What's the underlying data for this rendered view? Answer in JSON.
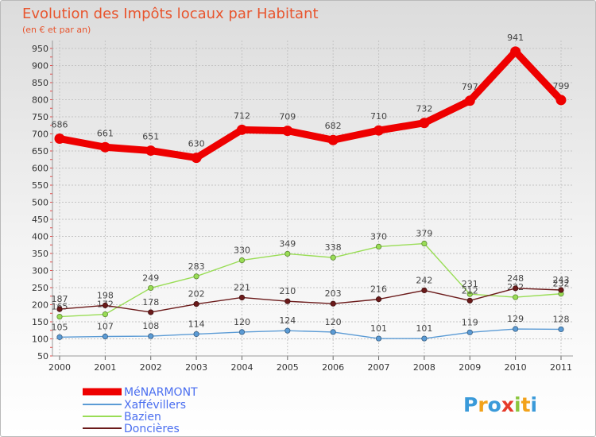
{
  "chart_data": {
    "type": "line",
    "title": "Evolution des Impôts locaux par Habitant",
    "subtitle": "(en € et par an)",
    "xlabel": "",
    "ylabel": "",
    "x": [
      "2000",
      "2001",
      "2002",
      "2003",
      "2004",
      "2005",
      "2006",
      "2007",
      "2008",
      "2009",
      "2010",
      "2011"
    ],
    "ylim": [
      50,
      950
    ],
    "yticks": [
      50,
      100,
      150,
      200,
      250,
      300,
      350,
      400,
      450,
      500,
      550,
      600,
      650,
      700,
      750,
      800,
      850,
      900,
      950
    ],
    "grid": true,
    "legend_position": "bottom-left",
    "series": [
      {
        "name": "MéNARMONT",
        "color": "#ee0000",
        "values": [
          686,
          661,
          651,
          630,
          712,
          709,
          682,
          710,
          732,
          797,
          941,
          799
        ],
        "labels": [
          "686",
          "661",
          "651",
          "630",
          "712",
          "709",
          "682",
          "710",
          "732",
          "797",
          "941",
          "799"
        ]
      },
      {
        "name": "Xaffévillers",
        "color": "#5b9bd5",
        "values": [
          105,
          107,
          108,
          114,
          120,
          124,
          120,
          101,
          101,
          119,
          129,
          128
        ],
        "labels": [
          "105",
          "107",
          "108",
          "114",
          "120",
          "124",
          "120",
          "101",
          "101",
          "119",
          "129",
          "128"
        ]
      },
      {
        "name": "Bazien",
        "color": "#99dd55",
        "values": [
          165,
          172,
          249,
          283,
          330,
          349,
          338,
          370,
          379,
          231,
          222,
          232
        ],
        "labels": [
          "165",
          "172",
          "249",
          "283",
          "330",
          "349",
          "338",
          "370",
          "379",
          "231",
          "222",
          "232"
        ]
      },
      {
        "name": "Doncières",
        "color": "#6b1a1a",
        "values": [
          187,
          198,
          178,
          202,
          221,
          210,
          203,
          216,
          242,
          212,
          248,
          243
        ],
        "labels": [
          "187",
          "198",
          "178",
          "202",
          "221",
          "210",
          "203",
          "216",
          "242",
          "212",
          "248",
          "243"
        ]
      }
    ]
  },
  "brand": {
    "letters": [
      "P",
      "r",
      "o",
      "x",
      "i",
      "t",
      "i"
    ],
    "colors": [
      "#3a9ad9",
      "#f2a21b",
      "#3a9ad9",
      "#e53a2a",
      "#8cc63f",
      "#f2a21b",
      "#3a9ad9"
    ]
  }
}
